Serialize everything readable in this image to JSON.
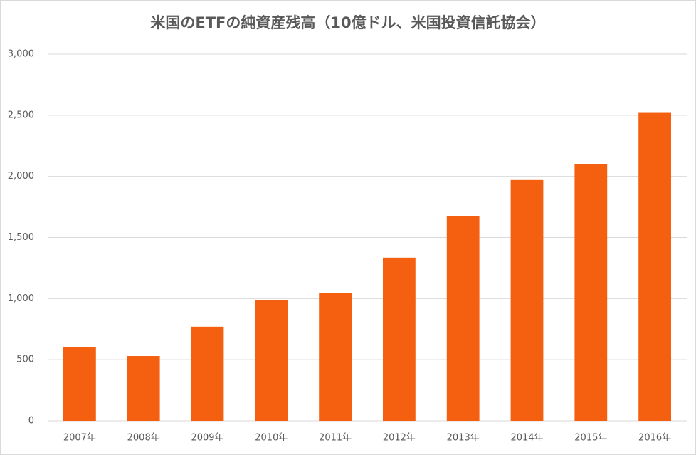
{
  "chart_data": {
    "type": "bar",
    "title": "米国のETFの純資産残高（10億ドル、米国投資信託協会）",
    "categories": [
      "2007年",
      "2008年",
      "2009年",
      "2010年",
      "2011年",
      "2012年",
      "2013年",
      "2014年",
      "2015年",
      "2016年"
    ],
    "values": [
      600,
      530,
      770,
      985,
      1045,
      1335,
      1675,
      1970,
      2100,
      2525
    ],
    "color": "#f4600f",
    "ylim": [
      0,
      3000
    ],
    "yticks": [
      0,
      500,
      {
        "value": 1000,
        "label": "1,000"
      },
      {
        "value": 1500,
        "label": "1,500"
      },
      {
        "value": 2000,
        "label": "2,000"
      },
      {
        "value": 2500,
        "label": "2,500"
      },
      {
        "value": 3000,
        "label": "3,000"
      }
    ],
    "grid": true
  }
}
